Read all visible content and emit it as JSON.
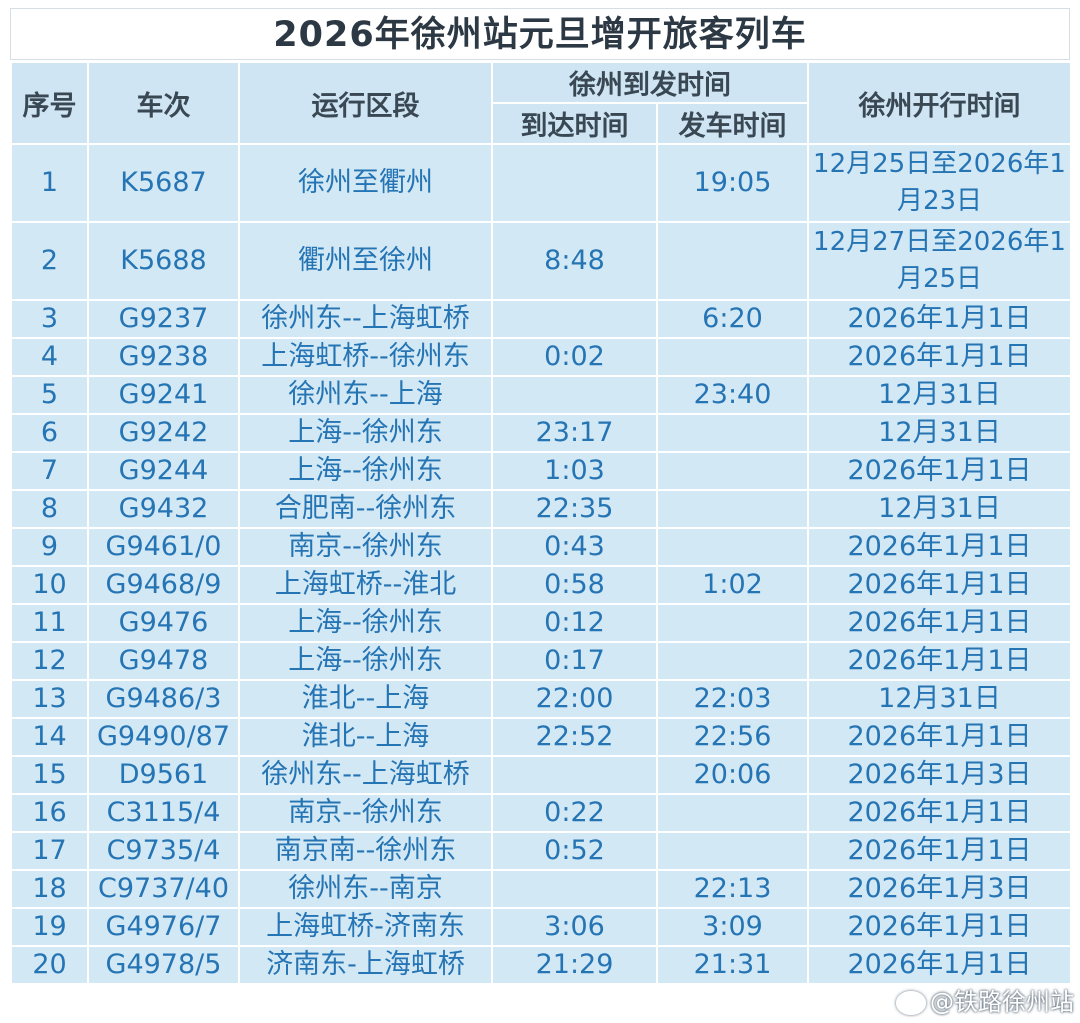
{
  "title": "2026年徐州站元旦增开旅客列车",
  "headers": {
    "seq": "序号",
    "train": "车次",
    "section": "运行区段",
    "xuzhou_times": "徐州到发时间",
    "arrive": "到达时间",
    "depart": "发车时间",
    "run_dates": "徐州开行时间"
  },
  "rows": [
    {
      "seq": "1",
      "train": "K5687",
      "section": "徐州至衢州",
      "arrive": "",
      "depart": "19:05",
      "dates": "12月25日至2026年1月23日"
    },
    {
      "seq": "2",
      "train": "K5688",
      "section": "衢州至徐州",
      "arrive": "8:48",
      "depart": "",
      "dates": "12月27日至2026年1月25日"
    },
    {
      "seq": "3",
      "train": "G9237",
      "section": "徐州东--上海虹桥",
      "arrive": "",
      "depart": "6:20",
      "dates": "2026年1月1日"
    },
    {
      "seq": "4",
      "train": "G9238",
      "section": "上海虹桥--徐州东",
      "arrive": "0:02",
      "depart": "",
      "dates": "2026年1月1日"
    },
    {
      "seq": "5",
      "train": "G9241",
      "section": "徐州东--上海",
      "arrive": "",
      "depart": "23:40",
      "dates": "12月31日"
    },
    {
      "seq": "6",
      "train": "G9242",
      "section": "上海--徐州东",
      "arrive": "23:17",
      "depart": "",
      "dates": "12月31日"
    },
    {
      "seq": "7",
      "train": "G9244",
      "section": "上海--徐州东",
      "arrive": "1:03",
      "depart": "",
      "dates": "2026年1月1日"
    },
    {
      "seq": "8",
      "train": "G9432",
      "section": "合肥南--徐州东",
      "arrive": "22:35",
      "depart": "",
      "dates": "12月31日"
    },
    {
      "seq": "9",
      "train": "G9461/0",
      "section": "南京--徐州东",
      "arrive": "0:43",
      "depart": "",
      "dates": "2026年1月1日"
    },
    {
      "seq": "10",
      "train": "G9468/9",
      "section": "上海虹桥--淮北",
      "arrive": "0:58",
      "depart": "1:02",
      "dates": "2026年1月1日"
    },
    {
      "seq": "11",
      "train": "G9476",
      "section": "上海--徐州东",
      "arrive": "0:12",
      "depart": "",
      "dates": "2026年1月1日"
    },
    {
      "seq": "12",
      "train": "G9478",
      "section": "上海--徐州东",
      "arrive": "0:17",
      "depart": "",
      "dates": "2026年1月1日"
    },
    {
      "seq": "13",
      "train": "G9486/3",
      "section": "淮北--上海",
      "arrive": "22:00",
      "depart": "22:03",
      "dates": "12月31日"
    },
    {
      "seq": "14",
      "train": "G9490/87",
      "section": "淮北--上海",
      "arrive": "22:52",
      "depart": "22:56",
      "dates": "2026年1月1日"
    },
    {
      "seq": "15",
      "train": "D9561",
      "section": "徐州东--上海虹桥",
      "arrive": "",
      "depart": "20:06",
      "dates": "2026年1月3日"
    },
    {
      "seq": "16",
      "train": "C3115/4",
      "section": "南京--徐州东",
      "arrive": "0:22",
      "depart": "",
      "dates": "2026年1月1日"
    },
    {
      "seq": "17",
      "train": "C9735/4",
      "section": "南京南--徐州东",
      "arrive": "0:52",
      "depart": "",
      "dates": "2026年1月1日"
    },
    {
      "seq": "18",
      "train": "C9737/40",
      "section": "徐州东--南京",
      "arrive": "",
      "depart": "22:13",
      "dates": "2026年1月3日"
    },
    {
      "seq": "19",
      "train": "G4976/7",
      "section": "上海虹桥-济南东",
      "arrive": "3:06",
      "depart": "3:09",
      "dates": "2026年1月1日"
    },
    {
      "seq": "20",
      "train": "G4978/5",
      "section": "济南东-上海虹桥",
      "arrive": "21:29",
      "depart": "21:31",
      "dates": "2026年1月1日"
    }
  ],
  "watermark": "@铁路徐州站",
  "colors": {
    "cell_bg": "#d2e8f5",
    "cell_text": "#2574b4",
    "header_text": "#3a4854"
  }
}
